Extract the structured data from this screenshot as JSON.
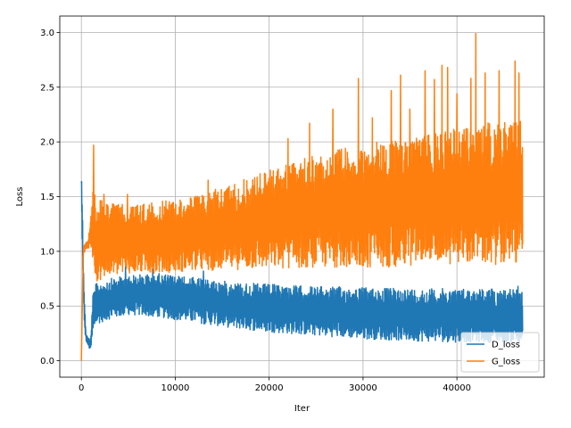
{
  "chart_data": {
    "type": "line",
    "title": "",
    "xlabel": "Iter",
    "ylabel": "Loss",
    "xlim": [
      -2300,
      49300
    ],
    "ylim": [
      -0.15,
      3.15
    ],
    "xticks": [
      0,
      10000,
      20000,
      30000,
      40000
    ],
    "yticks": [
      0.0,
      0.5,
      1.0,
      1.5,
      2.0,
      2.5,
      3.0
    ],
    "xtick_labels": [
      "0",
      "10000",
      "20000",
      "30000",
      "40000"
    ],
    "ytick_labels": [
      "0.0",
      "0.5",
      "1.0",
      "1.5",
      "2.0",
      "2.5",
      "3.0"
    ],
    "grid": true,
    "legend_position": "lower-right",
    "x_max": 47000,
    "series": [
      {
        "name": "D_loss",
        "color": "#1f77b4",
        "envelope": {
          "x": [
            0,
            100,
            300,
            500,
            700,
            900,
            1000,
            1200,
            1500,
            3000,
            5000,
            8000,
            12000,
            16000,
            20000,
            25000,
            30000,
            35000,
            40000,
            45000,
            47000
          ],
          "lower": [
            1.6,
            1.0,
            0.3,
            0.18,
            0.14,
            0.1,
            0.1,
            0.2,
            0.33,
            0.38,
            0.42,
            0.4,
            0.35,
            0.3,
            0.26,
            0.23,
            0.2,
            0.18,
            0.17,
            0.17,
            0.17
          ],
          "upper": [
            1.7,
            1.55,
            0.6,
            0.25,
            0.22,
            0.2,
            0.2,
            0.6,
            0.7,
            0.75,
            0.78,
            0.8,
            0.76,
            0.72,
            0.7,
            0.68,
            0.67,
            0.66,
            0.66,
            0.66,
            0.66
          ]
        },
        "spikes": [
          [
            4700,
            0.86
          ],
          [
            7600,
            0.84
          ],
          [
            13000,
            0.82
          ],
          [
            46500,
            0.68
          ]
        ]
      },
      {
        "name": "G_loss",
        "color": "#ff7f0e",
        "envelope": {
          "x": [
            0,
            200,
            400,
            700,
            1000,
            1200,
            1500,
            2500,
            5000,
            8000,
            12000,
            16000,
            20000,
            25000,
            30000,
            35000,
            40000,
            45000,
            47000
          ],
          "lower": [
            0.0,
            0.95,
            1.0,
            1.02,
            1.05,
            0.8,
            0.72,
            0.75,
            0.8,
            0.8,
            0.82,
            0.83,
            0.84,
            0.85,
            0.85,
            0.86,
            0.87,
            0.88,
            0.88
          ],
          "upper": [
            0.0,
            1.05,
            1.08,
            1.1,
            1.3,
            1.7,
            1.5,
            1.45,
            1.42,
            1.45,
            1.5,
            1.62,
            1.75,
            1.88,
            1.98,
            2.05,
            2.12,
            2.2,
            2.2
          ]
        },
        "spikes": [
          [
            1300,
            1.97
          ],
          [
            2400,
            1.52
          ],
          [
            4900,
            1.52
          ],
          [
            13500,
            1.65
          ],
          [
            22000,
            2.03
          ],
          [
            24300,
            2.17
          ],
          [
            26800,
            2.3
          ],
          [
            29500,
            2.58
          ],
          [
            31000,
            2.22
          ],
          [
            33000,
            2.47
          ],
          [
            34000,
            2.61
          ],
          [
            35000,
            2.3
          ],
          [
            36600,
            2.65
          ],
          [
            37600,
            2.57
          ],
          [
            38400,
            2.7
          ],
          [
            39000,
            2.68
          ],
          [
            40000,
            2.44
          ],
          [
            41500,
            2.58
          ],
          [
            42000,
            2.99
          ],
          [
            43000,
            2.63
          ],
          [
            44500,
            2.65
          ],
          [
            46200,
            2.74
          ],
          [
            46600,
            2.63
          ]
        ]
      }
    ]
  }
}
